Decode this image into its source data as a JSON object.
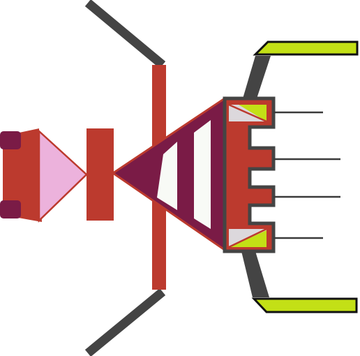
{
  "colors": {
    "background": "#ffffff",
    "red": "#bc3a2e",
    "maroon": "#7a1b46",
    "pink": "#ecb2dc",
    "lime": "#c3e016",
    "dark_gray": "#444444",
    "light_gray": "#dcd8dc",
    "near_white": "#f8faf6",
    "line": "#3a3a3a"
  },
  "icon": "abstract-geometric-machine-icon"
}
